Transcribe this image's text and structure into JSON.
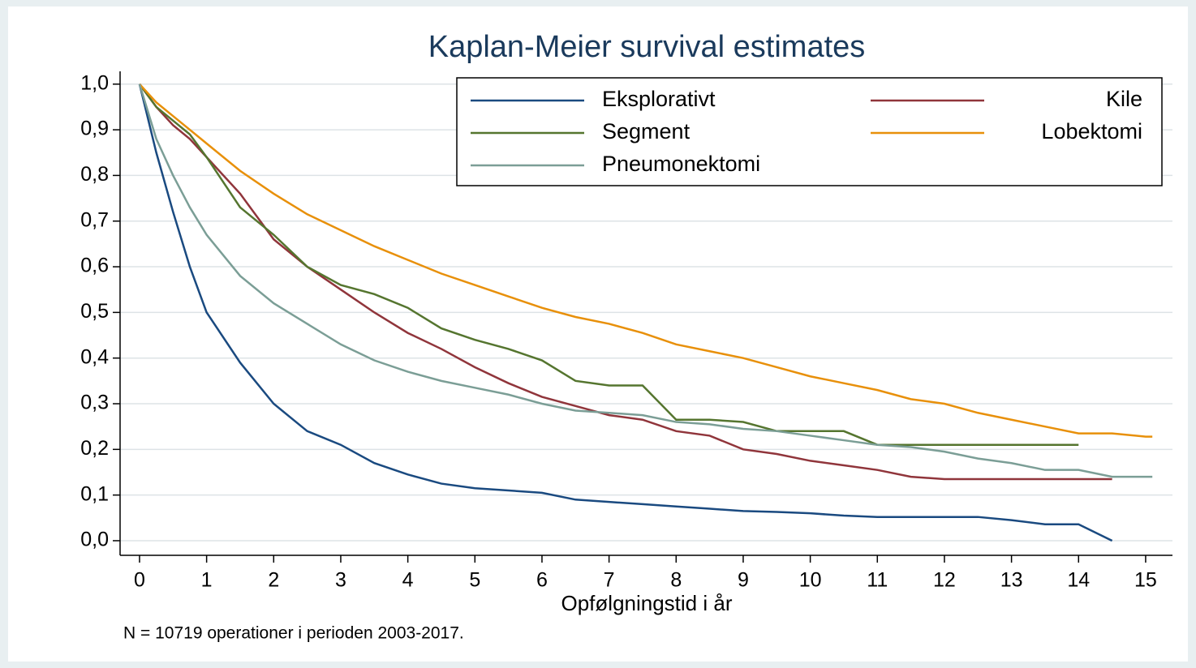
{
  "chart_data": {
    "type": "line",
    "title": "Kaplan-Meier survival estimates",
    "x_label": "Opfølgningstid i år",
    "note": "N = 10719 operationer i perioden 2003-2017.",
    "x": [
      0,
      0.25,
      0.5,
      0.75,
      1,
      1.5,
      2,
      2.5,
      3,
      3.5,
      4,
      4.5,
      5,
      5.5,
      6,
      6.5,
      7,
      7.5,
      8,
      8.5,
      9,
      9.5,
      10,
      10.5,
      11,
      11.5,
      12,
      12.5,
      13,
      13.5,
      14,
      14.5,
      15,
      15.1
    ],
    "series": [
      {
        "name": "Eksplorativt",
        "color": "#1a4a80",
        "values": [
          1.0,
          0.85,
          0.72,
          0.6,
          0.5,
          0.39,
          0.3,
          0.24,
          0.21,
          0.17,
          0.145,
          0.125,
          0.115,
          0.11,
          0.105,
          0.09,
          0.085,
          0.08,
          0.075,
          0.07,
          0.065,
          0.063,
          0.06,
          0.055,
          0.052,
          0.052,
          0.052,
          0.052,
          0.045,
          0.036,
          0.036,
          0.0,
          null,
          null
        ]
      },
      {
        "name": "Kile",
        "color": "#90353b",
        "values": [
          1.0,
          0.95,
          0.91,
          0.88,
          0.84,
          0.76,
          0.66,
          0.6,
          0.55,
          0.5,
          0.455,
          0.42,
          0.38,
          0.345,
          0.315,
          0.295,
          0.275,
          0.265,
          0.24,
          0.23,
          0.2,
          0.19,
          0.175,
          0.165,
          0.155,
          0.14,
          0.135,
          0.135,
          0.135,
          0.135,
          0.135,
          0.135,
          null,
          null
        ]
      },
      {
        "name": "Segment",
        "color": "#55752f",
        "values": [
          1.0,
          0.95,
          0.92,
          0.89,
          0.84,
          0.73,
          0.67,
          0.6,
          0.56,
          0.54,
          0.51,
          0.465,
          0.44,
          0.42,
          0.395,
          0.35,
          0.34,
          0.34,
          0.265,
          0.265,
          0.26,
          0.24,
          0.24,
          0.24,
          0.21,
          0.21,
          0.21,
          0.21,
          0.21,
          0.21,
          0.21,
          null,
          null,
          null
        ]
      },
      {
        "name": "Lobektomi",
        "color": "#e8900a",
        "values": [
          1.0,
          0.96,
          0.93,
          0.9,
          0.87,
          0.81,
          0.76,
          0.715,
          0.68,
          0.645,
          0.615,
          0.585,
          0.56,
          0.535,
          0.51,
          0.49,
          0.475,
          0.455,
          0.43,
          0.415,
          0.4,
          0.38,
          0.36,
          0.345,
          0.33,
          0.31,
          0.3,
          0.28,
          0.265,
          0.25,
          0.235,
          0.235,
          0.228,
          0.228
        ]
      },
      {
        "name": "Pneumonektomi",
        "color": "#7b9e96",
        "values": [
          1.0,
          0.88,
          0.8,
          0.73,
          0.67,
          0.58,
          0.52,
          0.475,
          0.43,
          0.395,
          0.37,
          0.35,
          0.335,
          0.32,
          0.3,
          0.285,
          0.28,
          0.275,
          0.26,
          0.255,
          0.245,
          0.24,
          0.23,
          0.22,
          0.21,
          0.205,
          0.195,
          0.18,
          0.17,
          0.155,
          0.155,
          0.14,
          0.14,
          0.14
        ]
      }
    ],
    "xlim": [
      -0.29,
      15.4
    ],
    "ylim": [
      -0.032,
      1.028
    ],
    "xticks": [
      0,
      1,
      2,
      3,
      4,
      5,
      6,
      7,
      8,
      9,
      10,
      11,
      12,
      13,
      14,
      15
    ],
    "yticks": [
      {
        "value": 0,
        "label": "0,0"
      },
      {
        "value": 0.1,
        "label": "0,1"
      },
      {
        "value": 0.2,
        "label": "0,2"
      },
      {
        "value": 0.3,
        "label": "0,3"
      },
      {
        "value": 0.4,
        "label": "0,4"
      },
      {
        "value": 0.5,
        "label": "0,5"
      },
      {
        "value": 0.6,
        "label": "0,6"
      },
      {
        "value": 0.7,
        "label": "0,7"
      },
      {
        "value": 0.8,
        "label": "0,8"
      },
      {
        "value": 0.9,
        "label": "0,9"
      },
      {
        "value": 1.0,
        "label": "1,0"
      }
    ],
    "grid": true
  }
}
